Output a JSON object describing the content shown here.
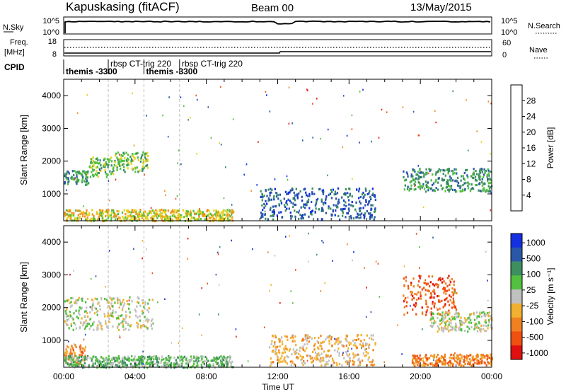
{
  "header": {
    "station": "Kapuskasing (fitACF)",
    "beam": "Beam 00",
    "date": "13/May/2015"
  },
  "strip": {
    "nsky_label": "N.Sky",
    "nsearch_label": "N.Search",
    "left_ticks": [
      "10^5",
      "10^0"
    ],
    "right_ticks": [
      "10^5",
      "10^0"
    ],
    "freq_label_1": "Freq.",
    "freq_label_2": "[MHz]",
    "freq_ticks": [
      "18",
      "8"
    ],
    "nave_label": "Nave",
    "nave_ticks": [
      "60",
      "0"
    ],
    "cpid_label": "CPID"
  },
  "cpid_segments": [
    {
      "label": "themis -3300",
      "start_h": 0.0,
      "text_row": 2
    },
    {
      "label": "rbsp CT-trig 220",
      "start_h": 2.5,
      "text_row": 1
    },
    {
      "label": "themis -3300",
      "start_h": 4.5,
      "text_row": 2
    },
    {
      "label": "rbsp CT-trig 220",
      "start_h": 6.5,
      "text_row": 1
    }
  ],
  "chart_data": [
    {
      "type": "heatmap",
      "name": "power",
      "xlabel": "",
      "ylabel": "Slant Range [km]",
      "xlim": [
        0,
        24
      ],
      "ylim": [
        180,
        4500
      ],
      "yticks": [
        "1000",
        "2000",
        "3000",
        "4000"
      ],
      "colorbar_label": "Power [dB]",
      "colorbar_ticks": [
        "4",
        "8",
        "12",
        "16",
        "20",
        "24",
        "28"
      ],
      "colorbar_colors": [
        "#1530e0",
        "#2a58a8",
        "#3e8f60",
        "#52c040",
        "#e8d020",
        "#f29020",
        "#f05818",
        "#e02010"
      ],
      "regions": [
        {
          "t": [
            0.0,
            1.4
          ],
          "r": [
            1300,
            1750
          ],
          "level": 2
        },
        {
          "t": [
            1.4,
            2.8
          ],
          "r": [
            1550,
            2150
          ],
          "level": 3
        },
        {
          "t": [
            2.8,
            4.7
          ],
          "r": [
            1700,
            2300
          ],
          "level": 3
        },
        {
          "t": [
            0.0,
            9.5
          ],
          "r": [
            200,
            550
          ],
          "level": 4
        },
        {
          "t": [
            11.0,
            17.5
          ],
          "r": [
            250,
            1200
          ],
          "level": 1
        },
        {
          "t": [
            19.0,
            24.0
          ],
          "r": [
            1100,
            1800
          ],
          "level": 2
        }
      ]
    },
    {
      "type": "heatmap",
      "name": "velocity",
      "xlabel": "Time UT",
      "ylabel": "Slant Range [km]",
      "xlim": [
        0,
        24
      ],
      "ylim": [
        180,
        4500
      ],
      "xticks": [
        "00:00",
        "04:00",
        "08:00",
        "12:00",
        "16:00",
        "20:00",
        "00:00"
      ],
      "yticks": [
        "1000",
        "2000",
        "3000",
        "4000"
      ],
      "colorbar_label": "Velocity [m s⁻¹]",
      "colorbar_ticks": [
        "1000",
        "500",
        "100",
        "25",
        "-25",
        "-100",
        "-500",
        "-1000"
      ],
      "colorbar_colors": [
        "#1530e0",
        "#2a58a8",
        "#3e8f60",
        "#52c040",
        "#c0c0c0",
        "#f2b030",
        "#f08020",
        "#f05010",
        "#e01010"
      ],
      "regions": [
        {
          "t": [
            0.0,
            5.0
          ],
          "r": [
            1350,
            2350
          ],
          "level": 4
        },
        {
          "t": [
            0.0,
            1.2
          ],
          "r": [
            300,
            900
          ],
          "level": 6
        },
        {
          "t": [
            0.0,
            9.5
          ],
          "r": [
            200,
            550
          ],
          "level": 3
        },
        {
          "t": [
            11.5,
            17.5
          ],
          "r": [
            250,
            1200
          ],
          "level": 5
        },
        {
          "t": [
            19.0,
            22.0
          ],
          "r": [
            1800,
            3000
          ],
          "level": 7
        },
        {
          "t": [
            19.5,
            24.0
          ],
          "r": [
            250,
            600
          ],
          "level": 6
        },
        {
          "t": [
            20.5,
            24.0
          ],
          "r": [
            1300,
            1900
          ],
          "level": 4
        }
      ]
    }
  ]
}
